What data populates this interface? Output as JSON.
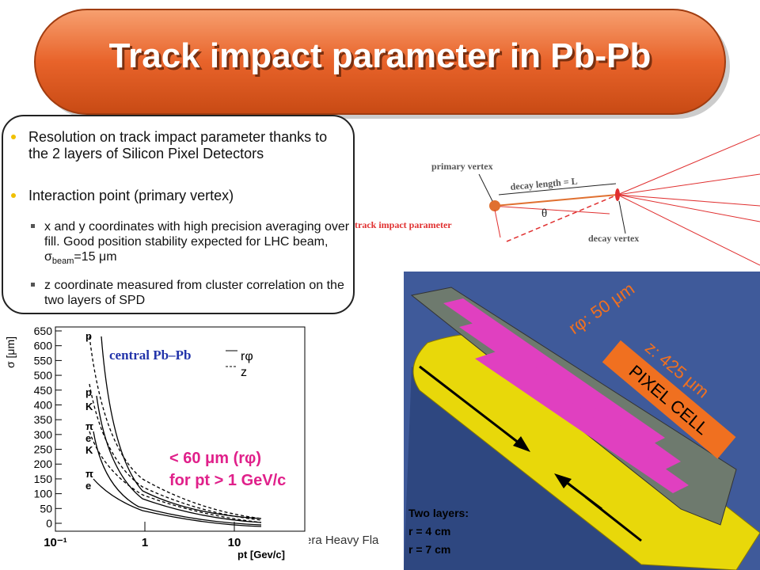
{
  "title": "Track impact parameter in Pb-Pb",
  "bullets": [
    "Resolution on track impact parameter thanks to the 2 layers of Silicon Pixel Detectors",
    "Interaction point (primary vertex)"
  ],
  "sub_bullets": [
    {
      "parts": [
        "x and y coordinates with high precision averaging over fill. Good position stability expected for LHC beam, ",
        "σ",
        "beam",
        "=15 μm"
      ]
    },
    {
      "parts": [
        "z coordinate measured from cluster correlation on the two layers of SPD"
      ]
    }
  ],
  "diagram": {
    "primary_vertex": "primary vertex",
    "decay_length": "decay length = L",
    "angle": "θ",
    "impact_parameter": "track impact parameter",
    "decay_vertex": "decay vertex"
  },
  "plot": {
    "y_label": "σ [μm]",
    "yticks": [
      650,
      600,
      550,
      500,
      450,
      400,
      350,
      300,
      250,
      200,
      150,
      100,
      50,
      0
    ],
    "xticks": [
      {
        "value": 0.1,
        "label": "10⁻¹"
      },
      {
        "value": 1,
        "label": "1"
      },
      {
        "value": 10,
        "label": "10"
      }
    ],
    "x_label": "pt [Gev/c]",
    "legend_title": "central Pb–Pb",
    "legend": [
      "rφ",
      "z"
    ],
    "particle_labels": [
      "p",
      "p",
      "K",
      "π",
      "e",
      "K",
      "π",
      "e"
    ],
    "annotation": [
      "< 60 μm (rφ)",
      "for pt > 1 GeV/c"
    ]
  },
  "detector": {
    "r_phi": "rφ: 50 μm",
    "z": "z: 425 μm",
    "cell": "PIXEL CELL",
    "layers": [
      "Two layers:",
      "r = 4 cm",
      "r = 7 cm"
    ]
  },
  "footer": "era  Heavy Fla"
}
